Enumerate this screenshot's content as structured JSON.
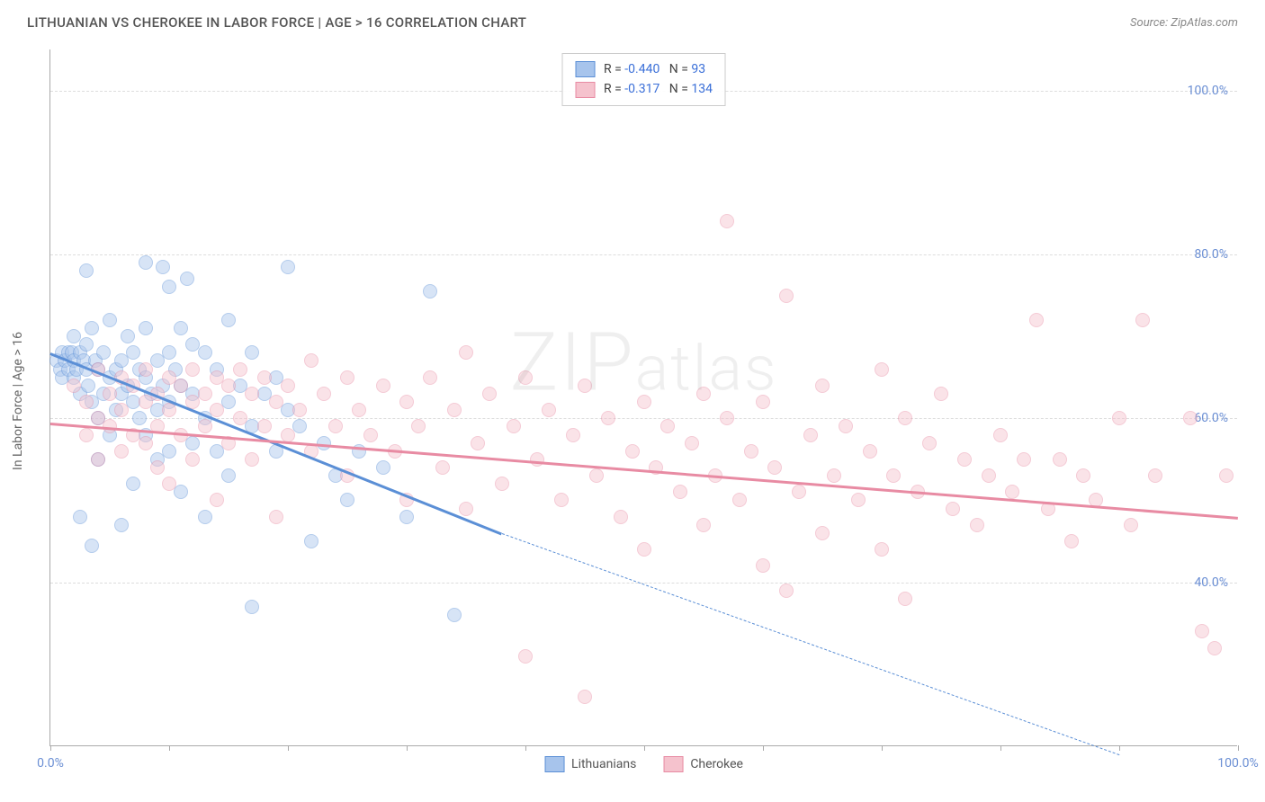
{
  "title": "LITHUANIAN VS CHEROKEE IN LABOR FORCE | AGE > 16 CORRELATION CHART",
  "source": "Source: ZipAtlas.com",
  "ylabel": "In Labor Force | Age > 16",
  "watermark": "ZIPatlas",
  "chart": {
    "type": "scatter",
    "xlim": [
      0,
      100
    ],
    "ylim": [
      20,
      105
    ],
    "yticks": [
      40,
      60,
      80,
      100
    ],
    "ytick_labels": [
      "40.0%",
      "60.0%",
      "80.0%",
      "100.0%"
    ],
    "xticks": [
      0,
      10,
      20,
      30,
      40,
      50,
      60,
      70,
      80,
      90,
      100
    ],
    "xtick_labels_shown": {
      "0": "0.0%",
      "100": "100.0%"
    },
    "background_color": "#ffffff",
    "grid_color": "#dddddd",
    "axis_color": "#aaaaaa",
    "tick_label_color": "#6b8fd4",
    "marker_radius": 8,
    "marker_opacity": 0.45
  },
  "series": [
    {
      "name": "Lithuanians",
      "color_fill": "#a7c4ec",
      "color_stroke": "#5b8fd6",
      "R": "-0.440",
      "N": "93",
      "trend": {
        "x1": 0,
        "y1": 68,
        "x2": 38,
        "y2": 46,
        "x2_dash": 90,
        "y2_dash": 19
      },
      "points": [
        [
          0.5,
          67
        ],
        [
          0.8,
          66
        ],
        [
          1,
          68
        ],
        [
          1,
          65
        ],
        [
          1.2,
          67
        ],
        [
          1.5,
          68
        ],
        [
          1.5,
          66
        ],
        [
          1.8,
          68
        ],
        [
          2,
          67
        ],
        [
          2,
          65
        ],
        [
          2,
          70
        ],
        [
          2.2,
          66
        ],
        [
          2.5,
          68
        ],
        [
          2.5,
          63
        ],
        [
          2.5,
          48
        ],
        [
          2.8,
          67
        ],
        [
          3,
          66
        ],
        [
          3,
          78
        ],
        [
          3,
          69
        ],
        [
          3.2,
          64
        ],
        [
          3.5,
          71
        ],
        [
          3.5,
          62
        ],
        [
          3.5,
          44.5
        ],
        [
          3.8,
          67
        ],
        [
          4,
          66
        ],
        [
          4,
          60
        ],
        [
          4,
          55
        ],
        [
          4.5,
          68
        ],
        [
          4.5,
          63
        ],
        [
          5,
          72
        ],
        [
          5,
          65
        ],
        [
          5,
          58
        ],
        [
          5.5,
          66
        ],
        [
          5.5,
          61
        ],
        [
          6,
          67
        ],
        [
          6,
          63
        ],
        [
          6,
          47
        ],
        [
          6.5,
          70
        ],
        [
          6.5,
          64
        ],
        [
          7,
          68
        ],
        [
          7,
          62
        ],
        [
          7,
          52
        ],
        [
          7.5,
          66
        ],
        [
          7.5,
          60
        ],
        [
          8,
          79
        ],
        [
          8,
          71
        ],
        [
          8,
          65
        ],
        [
          8,
          58
        ],
        [
          8.5,
          63
        ],
        [
          9,
          67
        ],
        [
          9,
          61
        ],
        [
          9,
          55
        ],
        [
          9.5,
          78.5
        ],
        [
          9.5,
          64
        ],
        [
          10,
          76
        ],
        [
          10,
          68
        ],
        [
          10,
          62
        ],
        [
          10,
          56
        ],
        [
          10.5,
          66
        ],
        [
          11,
          71
        ],
        [
          11,
          64
        ],
        [
          11,
          51
        ],
        [
          11.5,
          77
        ],
        [
          12,
          69
        ],
        [
          12,
          63
        ],
        [
          12,
          57
        ],
        [
          13,
          68
        ],
        [
          13,
          60
        ],
        [
          13,
          48
        ],
        [
          14,
          66
        ],
        [
          14,
          56
        ],
        [
          15,
          72
        ],
        [
          15,
          62
        ],
        [
          15,
          53
        ],
        [
          16,
          64
        ],
        [
          17,
          68
        ],
        [
          17,
          59
        ],
        [
          17,
          37
        ],
        [
          18,
          63
        ],
        [
          19,
          65
        ],
        [
          19,
          56
        ],
        [
          20,
          78.5
        ],
        [
          20,
          61
        ],
        [
          21,
          59
        ],
        [
          22,
          45
        ],
        [
          23,
          57
        ],
        [
          24,
          53
        ],
        [
          25,
          50
        ],
        [
          26,
          56
        ],
        [
          28,
          54
        ],
        [
          30,
          48
        ],
        [
          32,
          75.5
        ],
        [
          34,
          36
        ]
      ]
    },
    {
      "name": "Cherokee",
      "color_fill": "#f5c2cd",
      "color_stroke": "#e88ba3",
      "R": "-0.317",
      "N": "134",
      "trend": {
        "x1": 0,
        "y1": 59.5,
        "x2": 100,
        "y2": 48
      },
      "points": [
        [
          2,
          64
        ],
        [
          3,
          62
        ],
        [
          3,
          58
        ],
        [
          4,
          66
        ],
        [
          4,
          60
        ],
        [
          4,
          55
        ],
        [
          5,
          63
        ],
        [
          5,
          59
        ],
        [
          6,
          65
        ],
        [
          6,
          61
        ],
        [
          6,
          56
        ],
        [
          7,
          64
        ],
        [
          7,
          58
        ],
        [
          8,
          66
        ],
        [
          8,
          62
        ],
        [
          8,
          57
        ],
        [
          9,
          63
        ],
        [
          9,
          59
        ],
        [
          9,
          54
        ],
        [
          10,
          65
        ],
        [
          10,
          61
        ],
        [
          10,
          52
        ],
        [
          11,
          64
        ],
        [
          11,
          58
        ],
        [
          12,
          66
        ],
        [
          12,
          62
        ],
        [
          12,
          55
        ],
        [
          13,
          63
        ],
        [
          13,
          59
        ],
        [
          14,
          65
        ],
        [
          14,
          61
        ],
        [
          14,
          50
        ],
        [
          15,
          64
        ],
        [
          15,
          57
        ],
        [
          16,
          66
        ],
        [
          16,
          60
        ],
        [
          17,
          63
        ],
        [
          17,
          55
        ],
        [
          18,
          65
        ],
        [
          18,
          59
        ],
        [
          19,
          62
        ],
        [
          19,
          48
        ],
        [
          20,
          64
        ],
        [
          20,
          58
        ],
        [
          21,
          61
        ],
        [
          22,
          67
        ],
        [
          22,
          56
        ],
        [
          23,
          63
        ],
        [
          24,
          59
        ],
        [
          25,
          65
        ],
        [
          25,
          53
        ],
        [
          26,
          61
        ],
        [
          27,
          58
        ],
        [
          28,
          64
        ],
        [
          29,
          56
        ],
        [
          30,
          62
        ],
        [
          30,
          50
        ],
        [
          31,
          59
        ],
        [
          32,
          65
        ],
        [
          33,
          54
        ],
        [
          34,
          61
        ],
        [
          35,
          68
        ],
        [
          35,
          49
        ],
        [
          36,
          57
        ],
        [
          37,
          63
        ],
        [
          38,
          52
        ],
        [
          39,
          59
        ],
        [
          40,
          65
        ],
        [
          40,
          31
        ],
        [
          41,
          55
        ],
        [
          42,
          61
        ],
        [
          43,
          50
        ],
        [
          44,
          58
        ],
        [
          45,
          26
        ],
        [
          45,
          64
        ],
        [
          46,
          53
        ],
        [
          47,
          60
        ],
        [
          48,
          48
        ],
        [
          49,
          56
        ],
        [
          50,
          62
        ],
        [
          50,
          44
        ],
        [
          51,
          54
        ],
        [
          52,
          59
        ],
        [
          53,
          51
        ],
        [
          54,
          57
        ],
        [
          55,
          63
        ],
        [
          55,
          47
        ],
        [
          56,
          53
        ],
        [
          57,
          60
        ],
        [
          57,
          84
        ],
        [
          58,
          50
        ],
        [
          59,
          56
        ],
        [
          60,
          62
        ],
        [
          60,
          42
        ],
        [
          61,
          54
        ],
        [
          62,
          75
        ],
        [
          62,
          39
        ],
        [
          63,
          51
        ],
        [
          64,
          58
        ],
        [
          65,
          64
        ],
        [
          65,
          46
        ],
        [
          66,
          53
        ],
        [
          67,
          59
        ],
        [
          68,
          50
        ],
        [
          69,
          56
        ],
        [
          70,
          66
        ],
        [
          70,
          44
        ],
        [
          71,
          53
        ],
        [
          72,
          60
        ],
        [
          72,
          38
        ],
        [
          73,
          51
        ],
        [
          74,
          57
        ],
        [
          75,
          63
        ],
        [
          76,
          49
        ],
        [
          77,
          55
        ],
        [
          78,
          47
        ],
        [
          79,
          53
        ],
        [
          80,
          58
        ],
        [
          81,
          51
        ],
        [
          82,
          55
        ],
        [
          83,
          72
        ],
        [
          84,
          49
        ],
        [
          85,
          55
        ],
        [
          86,
          45
        ],
        [
          87,
          53
        ],
        [
          88,
          50
        ],
        [
          90,
          60
        ],
        [
          91,
          47
        ],
        [
          92,
          72
        ],
        [
          93,
          53
        ],
        [
          96,
          60
        ],
        [
          97,
          34
        ],
        [
          98,
          32
        ],
        [
          99,
          53
        ]
      ]
    }
  ],
  "legend_top": [
    {
      "swatch_fill": "#a7c4ec",
      "swatch_stroke": "#5b8fd6",
      "r_label": "R =",
      "r_val": "-0.440",
      "n_label": "N =",
      "n_val": "93"
    },
    {
      "swatch_fill": "#f5c2cd",
      "swatch_stroke": "#e88ba3",
      "r_label": "R =",
      "r_val": "-0.317",
      "n_label": "N =",
      "n_val": "134"
    }
  ],
  "legend_bottom": [
    {
      "swatch_fill": "#a7c4ec",
      "swatch_stroke": "#5b8fd6",
      "label": "Lithuanians"
    },
    {
      "swatch_fill": "#f5c2cd",
      "swatch_stroke": "#e88ba3",
      "label": "Cherokee"
    }
  ]
}
